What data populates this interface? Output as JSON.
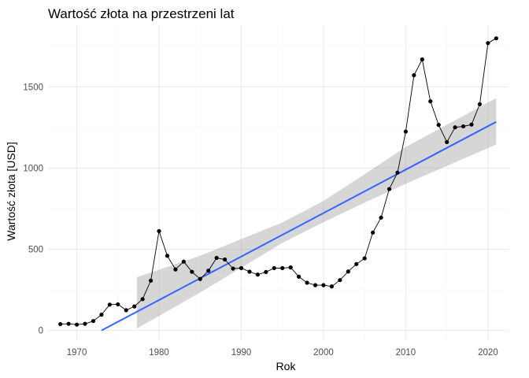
{
  "chart_data": {
    "type": "line",
    "title": "Wartość złota na przestrzeni lat",
    "xlabel": "Rok",
    "ylabel": "Wartość złota [USD]",
    "xlim": [
      1966.5,
      2022.5
    ],
    "ylim": [
      -60,
      1880
    ],
    "x_ticks": [
      1970,
      1980,
      1990,
      2000,
      2010,
      2020
    ],
    "y_ticks": [
      0,
      500,
      1000,
      1500
    ],
    "grid": true,
    "legend": "none",
    "series": [
      {
        "x": [
          1968,
          1969,
          1970,
          1971,
          1972,
          1973,
          1974,
          1975,
          1976,
          1977,
          1978,
          1979,
          1980,
          1981,
          1982,
          1983,
          1984,
          1985,
          1986,
          1987,
          1988,
          1989,
          1990,
          1991,
          1992,
          1993,
          1994,
          1995,
          1996,
          1997,
          1998,
          1999,
          2000,
          2001,
          2002,
          2003,
          2004,
          2005,
          2006,
          2007,
          2008,
          2009,
          2010,
          2011,
          2012,
          2013,
          2014,
          2015,
          2016,
          2017,
          2018,
          2019,
          2020,
          2021
        ],
        "y": [
          39,
          41,
          36,
          41,
          58,
          97,
          159,
          161,
          125,
          148,
          193,
          307,
          612,
          460,
          376,
          424,
          361,
          317,
          368,
          447,
          437,
          381,
          384,
          362,
          344,
          360,
          384,
          384,
          388,
          331,
          294,
          279,
          279,
          271,
          310,
          363,
          409,
          444,
          603,
          695,
          871,
          972,
          1225,
          1572,
          1669,
          1411,
          1266,
          1160,
          1251,
          1257,
          1268,
          1393,
          1770,
          1799
        ]
      }
    ],
    "trend": {
      "method": "linear",
      "x_start": 1973,
      "x_end": 2021,
      "y_start": 0,
      "y_end": 1285,
      "band_x_start": 1977.3,
      "band": [
        {
          "x": 1977.3,
          "lo": 12,
          "hi": 328
        },
        {
          "x": 1985,
          "lo": 234,
          "hi": 460
        },
        {
          "x": 1995,
          "lo": 539,
          "hi": 665
        },
        {
          "x": 2000,
          "lo": 667,
          "hi": 798
        },
        {
          "x": 2005,
          "lo": 788,
          "hi": 962
        },
        {
          "x": 2010,
          "lo": 903,
          "hi": 1130
        },
        {
          "x": 2021,
          "lo": 1145,
          "hi": 1431
        }
      ]
    },
    "colors": {
      "points": "#000000",
      "line": "#000000",
      "trend": "#3366ff",
      "band": "#999999",
      "grid_major": "#ebebeb",
      "grid_minor": "#f5f5f5"
    }
  }
}
